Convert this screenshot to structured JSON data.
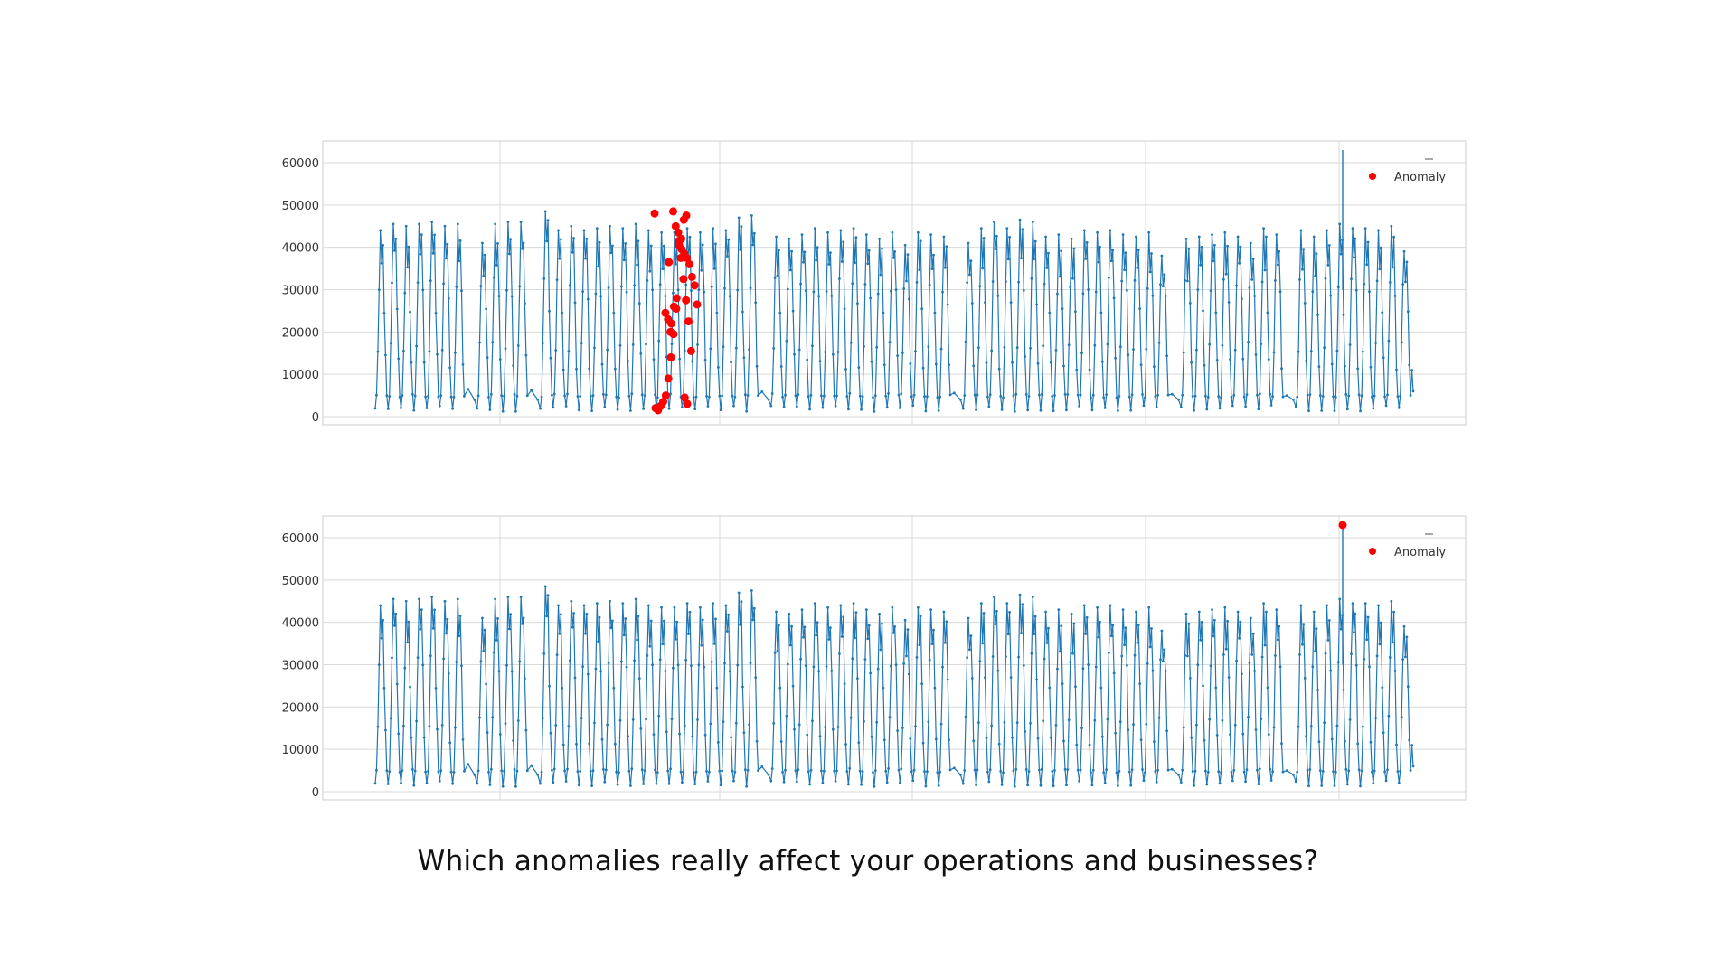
{
  "caption": "Which anomalies really affect your operations and businesses?",
  "colors": {
    "line": "#1f77b4",
    "anomaly": "#ff0000",
    "grid": "#d9d9d9",
    "frame": "#cccccc",
    "tick_text": "#333333",
    "background": "#ffffff"
  },
  "chart_data": [
    {
      "type": "line",
      "legend": {
        "entries": [
          "Anomaly"
        ],
        "placement": "top-right"
      },
      "ylim": [
        0,
        63000
      ],
      "yticks": [
        0,
        10000,
        20000,
        30000,
        40000,
        50000,
        60000
      ],
      "ytick_labels": [
        "0",
        "10000",
        "20000",
        "30000",
        "40000",
        "50000",
        "60000"
      ],
      "grid": true,
      "x_tick_labels": [],
      "series": [
        {
          "kind": "line",
          "pattern": "daily cycles between ~1500 and ~40000-48000 with data gaps",
          "segments": [
            {
              "cycles": 7,
              "peaks": [
                44000,
                45500,
                45000,
                45500,
                46000,
                45000,
                45500
              ]
            },
            {
              "cycles": 4,
              "peaks": [
                41000,
                45500,
                46000,
                46000
              ]
            },
            {
              "cycles": 17,
              "peaks": [
                48500,
                44000,
                45000,
                44000,
                44500,
                45000,
                44500,
                45500,
                44000,
                43500,
                43500,
                44500,
                43500,
                44500,
                44000,
                47000,
                47500
              ]
            },
            {
              "cycles": 14,
              "peaks": [
                42500,
                42000,
                43000,
                44500,
                43500,
                44000,
                44500,
                43000,
                42000,
                43500,
                40500,
                43500,
                43000,
                42500
              ]
            },
            {
              "cycles": 16,
              "peaks": [
                41000,
                44500,
                46000,
                44500,
                46500,
                46000,
                42500,
                43000,
                42000,
                44000,
                43500,
                44000,
                43000,
                42500,
                43500,
                38000
              ]
            },
            {
              "cycles": 8,
              "peaks": [
                42000,
                42500,
                43000,
                43500,
                42500,
                41000,
                44500,
                43000
              ]
            },
            {
              "cycles": 9,
              "peaks": [
                44000,
                42500,
                44000,
                45500,
                44500,
                44500,
                44000,
                45000,
                39000
              ]
            }
          ],
          "spike": {
            "value": 63000,
            "after_segment_6_cycle": 3
          }
        },
        {
          "kind": "scatter",
          "name": "Anomaly",
          "values": [
            48000,
            47500,
            46500,
            42000,
            41500,
            25500,
            19500,
            14000,
            9000,
            5000,
            3500,
            2500,
            1500,
            2000,
            3000,
            4500,
            15500,
            22500,
            27500,
            32500,
            37500,
            43500,
            45000,
            48500,
            20000,
            23000,
            24500,
            26500,
            31000,
            33000,
            36000,
            37500,
            38500,
            39500,
            40500,
            28000,
            26000,
            22000,
            36500
          ]
        }
      ]
    },
    {
      "type": "line",
      "legend": {
        "entries": [
          "Anomaly"
        ],
        "placement": "top-right"
      },
      "ylim": [
        0,
        63000
      ],
      "yticks": [
        0,
        10000,
        20000,
        30000,
        40000,
        50000,
        60000
      ],
      "ytick_labels": [
        "0",
        "10000",
        "20000",
        "30000",
        "40000",
        "50000",
        "60000"
      ],
      "grid": true,
      "x_tick_labels": [],
      "series": [
        {
          "kind": "line",
          "pattern": "same series as chart 1",
          "same_as_chart": 0
        },
        {
          "kind": "scatter",
          "name": "Anomaly",
          "values": [
            63000
          ]
        }
      ]
    }
  ]
}
